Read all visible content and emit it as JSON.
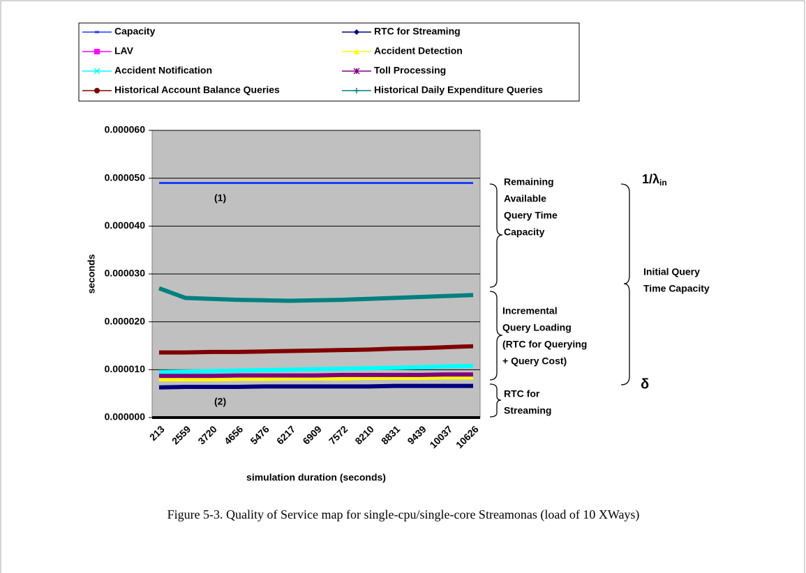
{
  "chart_data": {
    "type": "line",
    "categories": [
      "213",
      "2559",
      "3720",
      "4656",
      "5476",
      "6217",
      "6909",
      "7572",
      "8210",
      "8831",
      "9439",
      "10037",
      "10626"
    ],
    "series": [
      {
        "name": "Capacity",
        "color": "#1e3cff",
        "marker": "dash",
        "values": [
          4.9e-05,
          4.9e-05,
          4.9e-05,
          4.9e-05,
          4.9e-05,
          4.9e-05,
          4.9e-05,
          4.9e-05,
          4.9e-05,
          4.9e-05,
          4.9e-05,
          4.9e-05,
          4.9e-05
        ]
      },
      {
        "name": "RTC for Streaming",
        "color": "#000080",
        "marker": "diamond",
        "values": [
          6.3e-06,
          6.4e-06,
          6.4e-06,
          6.4e-06,
          6.5e-06,
          6.5e-06,
          6.5e-06,
          6.5e-06,
          6.5e-06,
          6.6e-06,
          6.6e-06,
          6.6e-06,
          6.6e-06
        ]
      },
      {
        "name": "LAV",
        "color": "#ff00ff",
        "marker": "square",
        "values": [
          8.2e-06,
          8.2e-06,
          8.2e-06,
          8.3e-06,
          8.3e-06,
          8.3e-06,
          8.3e-06,
          8.4e-06,
          8.4e-06,
          8.4e-06,
          8.4e-06,
          8.5e-06,
          8.5e-06
        ]
      },
      {
        "name": "Accident Detection",
        "color": "#ffff00",
        "marker": "triangle",
        "values": [
          8e-06,
          8e-06,
          8e-06,
          8.1e-06,
          8.1e-06,
          8.2e-06,
          8.2e-06,
          8.2e-06,
          8.3e-06,
          8.3e-06,
          8.3e-06,
          8.4e-06,
          8.4e-06
        ]
      },
      {
        "name": "Accident Notification",
        "color": "#00ffff",
        "marker": "x",
        "values": [
          9.5e-06,
          9.6e-06,
          9.7e-06,
          9.8e-06,
          9.9e-06,
          1e-05,
          1.01e-05,
          1.02e-05,
          1.03e-05,
          1.04e-05,
          1.05e-05,
          1.07e-05,
          1.08e-05
        ]
      },
      {
        "name": "Toll Processing",
        "color": "#800080",
        "marker": "star",
        "values": [
          8.7e-06,
          8.7e-06,
          8.7e-06,
          8.8e-06,
          8.8e-06,
          8.8e-06,
          8.8e-06,
          8.9e-06,
          8.9e-06,
          8.9e-06,
          8.9e-06,
          9e-06,
          9e-06
        ]
      },
      {
        "name": "Historical Account Balance Queries",
        "color": "#800000",
        "marker": "circle",
        "values": [
          1.36e-05,
          1.36e-05,
          1.37e-05,
          1.37e-05,
          1.38e-05,
          1.39e-05,
          1.4e-05,
          1.41e-05,
          1.42e-05,
          1.44e-05,
          1.45e-05,
          1.47e-05,
          1.49e-05
        ]
      },
      {
        "name": "Historical Daily Expenditure Queries",
        "color": "#008080",
        "marker": "plus",
        "values": [
          2.7e-05,
          2.5e-05,
          2.48e-05,
          2.46e-05,
          2.45e-05,
          2.44e-05,
          2.45e-05,
          2.46e-05,
          2.48e-05,
          2.5e-05,
          2.52e-05,
          2.54e-05,
          2.56e-05
        ]
      }
    ],
    "ylim": [
      0,
      6e-05
    ],
    "yticks": [
      {
        "value": 0,
        "label": "0.000000"
      },
      {
        "value": 1e-05,
        "label": "0.000010"
      },
      {
        "value": 2e-05,
        "label": "0.000020"
      },
      {
        "value": 3e-05,
        "label": "0.000030"
      },
      {
        "value": 4e-05,
        "label": "0.000040"
      },
      {
        "value": 5e-05,
        "label": "0.000050"
      },
      {
        "value": 6e-05,
        "label": "0.000060"
      }
    ],
    "grid": true,
    "y_label": "seconds",
    "x_label": "simulation duration (seconds)",
    "annotations": [
      {
        "lines": [
          "(1)"
        ]
      },
      {
        "lines": [
          "(2)"
        ]
      },
      {
        "lines": [
          "Remaining",
          "Available",
          "Query Time",
          "Capacity"
        ]
      },
      {
        "lines": [
          "Incremental",
          "Query Loading",
          "(RTC for Querying",
          "+ Query Cost)"
        ]
      },
      {
        "lines": [
          "RTC for",
          "Streaming"
        ]
      },
      {
        "lines": [
          "Initial Query",
          "Time Capacity"
        ]
      },
      {
        "lines": [
          "δ"
        ]
      },
      {
        "text": "1/λ",
        "subscript": "in"
      }
    ],
    "caption": "Figure 5-3. Quality of Service map for single-cpu/single-core Streamonas (load of 10 XWays)"
  }
}
